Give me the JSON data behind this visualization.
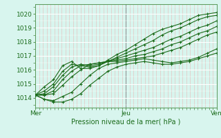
{
  "bg_color": "#d8f5ee",
  "grid_color_major": "#ffffff",
  "grid_color_minor": "#f0c8c8",
  "grid_color_horiz": "#ffffff",
  "line_color": "#1a6b1a",
  "xtick_labels": [
    "Mer",
    "Jeu",
    "Ven"
  ],
  "ylabel_text": "Pression niveau de la mer( hPa )",
  "ylim": [
    1013.3,
    1020.7
  ],
  "yticks": [
    1014,
    1015,
    1016,
    1017,
    1018,
    1019,
    1020
  ],
  "figsize": [
    3.2,
    2.0
  ],
  "dpi": 100,
  "series": [
    [
      1014.2,
      1014.8,
      1015.3,
      1016.3,
      1016.6,
      1016.1,
      1016.1,
      1016.3,
      1016.7,
      1017.1,
      1017.4,
      1017.8,
      1018.2,
      1018.6,
      1018.9,
      1019.1,
      1019.3,
      1019.6,
      1019.9,
      1020.0,
      1020.1
    ],
    [
      1014.2,
      1014.5,
      1015.0,
      1015.9,
      1016.4,
      1016.3,
      1016.2,
      1016.3,
      1016.6,
      1016.9,
      1017.2,
      1017.5,
      1017.8,
      1018.1,
      1018.5,
      1018.8,
      1019.0,
      1019.3,
      1019.6,
      1019.8,
      1019.9
    ],
    [
      1014.2,
      1014.3,
      1014.8,
      1015.6,
      1016.2,
      1016.4,
      1016.3,
      1016.4,
      1016.6,
      1016.8,
      1017.0,
      1017.2,
      1017.4,
      1017.6,
      1017.9,
      1018.2,
      1018.4,
      1018.7,
      1019.0,
      1019.2,
      1019.5
    ],
    [
      1014.2,
      1014.2,
      1014.5,
      1015.3,
      1015.9,
      1016.3,
      1016.4,
      1016.5,
      1016.6,
      1016.7,
      1016.8,
      1017.0,
      1017.1,
      1017.3,
      1017.5,
      1017.8,
      1018.0,
      1018.3,
      1018.6,
      1018.8,
      1019.1
    ],
    [
      1014.2,
      1014.2,
      1014.3,
      1014.9,
      1015.5,
      1016.0,
      1016.4,
      1016.5,
      1016.6,
      1016.6,
      1016.7,
      1016.8,
      1016.9,
      1017.0,
      1017.2,
      1017.4,
      1017.6,
      1017.9,
      1018.2,
      1018.5,
      1018.7
    ],
    [
      1014.2,
      1013.9,
      1013.8,
      1014.1,
      1014.4,
      1015.0,
      1015.6,
      1016.1,
      1016.4,
      1016.5,
      1016.6,
      1016.7,
      1016.8,
      1016.7,
      1016.6,
      1016.5,
      1016.6,
      1016.7,
      1016.9,
      1017.2,
      1017.5
    ],
    [
      1014.2,
      1013.9,
      1013.7,
      1013.7,
      1013.9,
      1014.3,
      1014.9,
      1015.4,
      1015.9,
      1016.2,
      1016.4,
      1016.5,
      1016.6,
      1016.5,
      1016.4,
      1016.4,
      1016.5,
      1016.6,
      1016.8,
      1017.0,
      1017.2
    ]
  ]
}
